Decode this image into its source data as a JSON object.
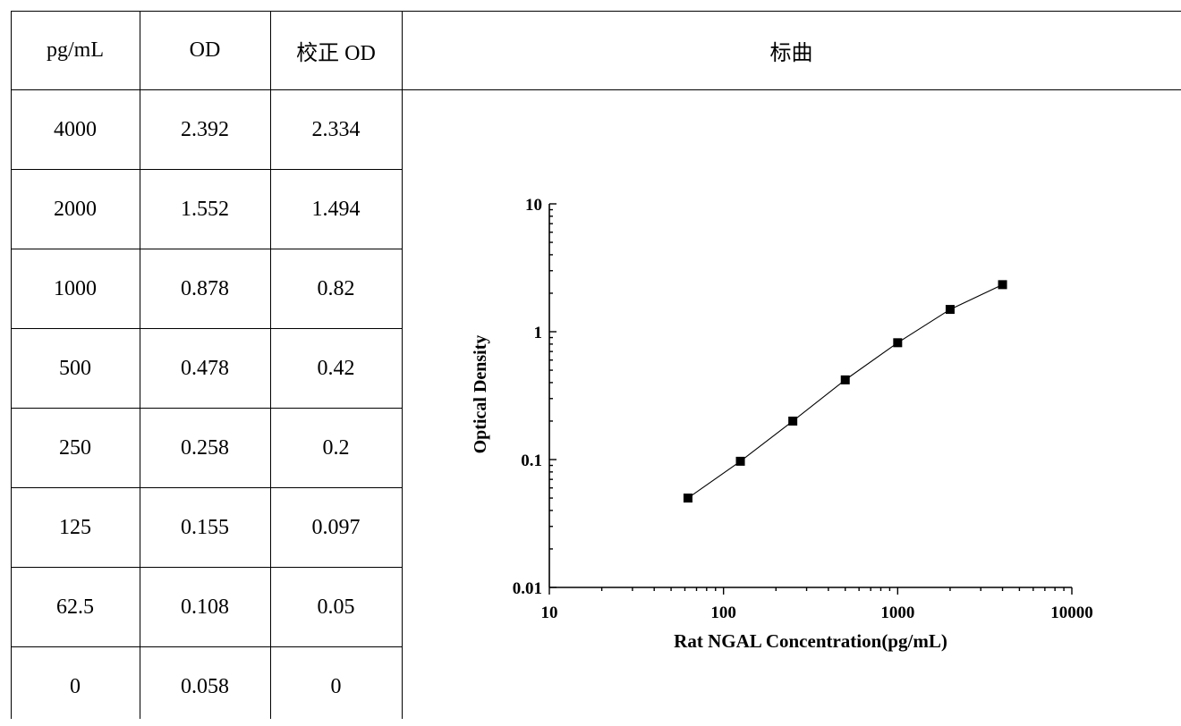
{
  "table": {
    "headers": [
      "pg/mL",
      "OD",
      "校正 OD",
      "标曲"
    ],
    "rows": [
      [
        "4000",
        "2.392",
        "2.334"
      ],
      [
        "2000",
        "1.552",
        "1.494"
      ],
      [
        "1000",
        "0.878",
        "0.82"
      ],
      [
        "500",
        "0.478",
        "0.42"
      ],
      [
        "250",
        "0.258",
        "0.2"
      ],
      [
        "125",
        "0.155",
        "0.097"
      ],
      [
        "62.5",
        "0.108",
        "0.05"
      ],
      [
        "0",
        "0.058",
        "0"
      ]
    ]
  },
  "chart_data": {
    "type": "scatter",
    "title": "",
    "xlabel": "Rat NGAL Concentration(pg/mL)",
    "ylabel": "Optical Density",
    "x_scale": "log",
    "y_scale": "log",
    "xlim": [
      10,
      10000
    ],
    "ylim": [
      0.01,
      10
    ],
    "x_ticks": [
      "10",
      "100",
      "1000",
      "10000"
    ],
    "y_ticks": [
      "0.01",
      "0.1",
      "1",
      "10"
    ],
    "series": [
      {
        "x": [
          62.5,
          125,
          250,
          500,
          1000,
          2000,
          4000
        ],
        "y": [
          0.05,
          0.097,
          0.2,
          0.42,
          0.82,
          1.494,
          2.334
        ],
        "line": true,
        "marker": "square"
      }
    ],
    "grid": false,
    "legend": false
  }
}
